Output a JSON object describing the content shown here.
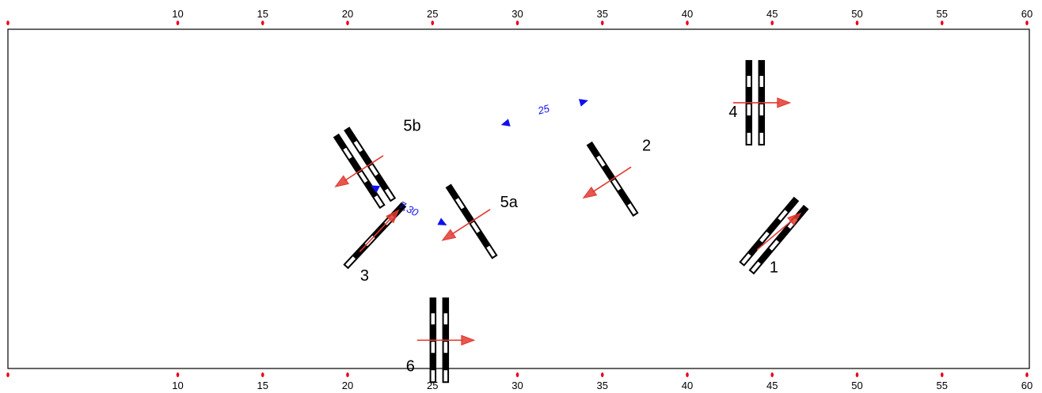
{
  "ruler": {
    "ticks": [
      "10",
      "15",
      "20",
      "25",
      "30",
      "35",
      "40",
      "45",
      "50",
      "55",
      "60"
    ],
    "tick_color": "#e8001c"
  },
  "obstacles": [
    {
      "id": "1",
      "label": "1",
      "bars": 2,
      "at": [
        45.1,
        36.5
      ],
      "angle": 130,
      "jump_dir": -40,
      "label_at": [
        45.1,
        43
      ]
    },
    {
      "id": "2",
      "label": "2",
      "bars": 1,
      "at": [
        35.6,
        26.5
      ],
      "angle": 57,
      "jump_dir": 147,
      "label_at": [
        37.6,
        21.5
      ]
    },
    {
      "id": "3",
      "label": "3",
      "bars": 1,
      "at": [
        21.6,
        36.5
      ],
      "angle": 133,
      "jump_dir": -47,
      "label_at": [
        21.0,
        44.5
      ]
    },
    {
      "id": "4",
      "label": "4",
      "bars": 2,
      "at": [
        44.0,
        13.0
      ],
      "angle": 90,
      "jump_dir": 0,
      "label_at": [
        42.7,
        15.5
      ]
    },
    {
      "id": "5a",
      "label": "5a",
      "bars": 1,
      "at": [
        27.3,
        34.0
      ],
      "angle": 57,
      "jump_dir": 147,
      "label_at": [
        29.5,
        31.5
      ]
    },
    {
      "id": "5b",
      "label": "5b",
      "bars": 2,
      "at": [
        21.0,
        24.5
      ],
      "angle": 57,
      "jump_dir": 147,
      "label_at": [
        23.8,
        18.0
      ]
    },
    {
      "id": "6",
      "label": "6",
      "bars": 2,
      "at": [
        25.4,
        55.0
      ],
      "angle": 90,
      "jump_dir": 0,
      "label_at": [
        23.7,
        60.5
      ]
    }
  ],
  "distances": [
    {
      "label": "25",
      "from": [
        29.3,
        16.7
      ],
      "to": [
        33.9,
        12.8
      ],
      "label_at": [
        31.6,
        14.8
      ],
      "color": "#1010ee"
    },
    {
      "label": "7,30",
      "from": [
        21.6,
        28.0
      ],
      "to": [
        25.6,
        34.3
      ],
      "label_at": [
        23.5,
        32.3
      ],
      "color": "#1010ee"
    }
  ],
  "colors": {
    "arena_border": "#000000",
    "pole_dark": "#000000",
    "pole_light": "#ffffff",
    "jump_arrow": "#e03a30",
    "distance_marker": "#1010ee"
  }
}
